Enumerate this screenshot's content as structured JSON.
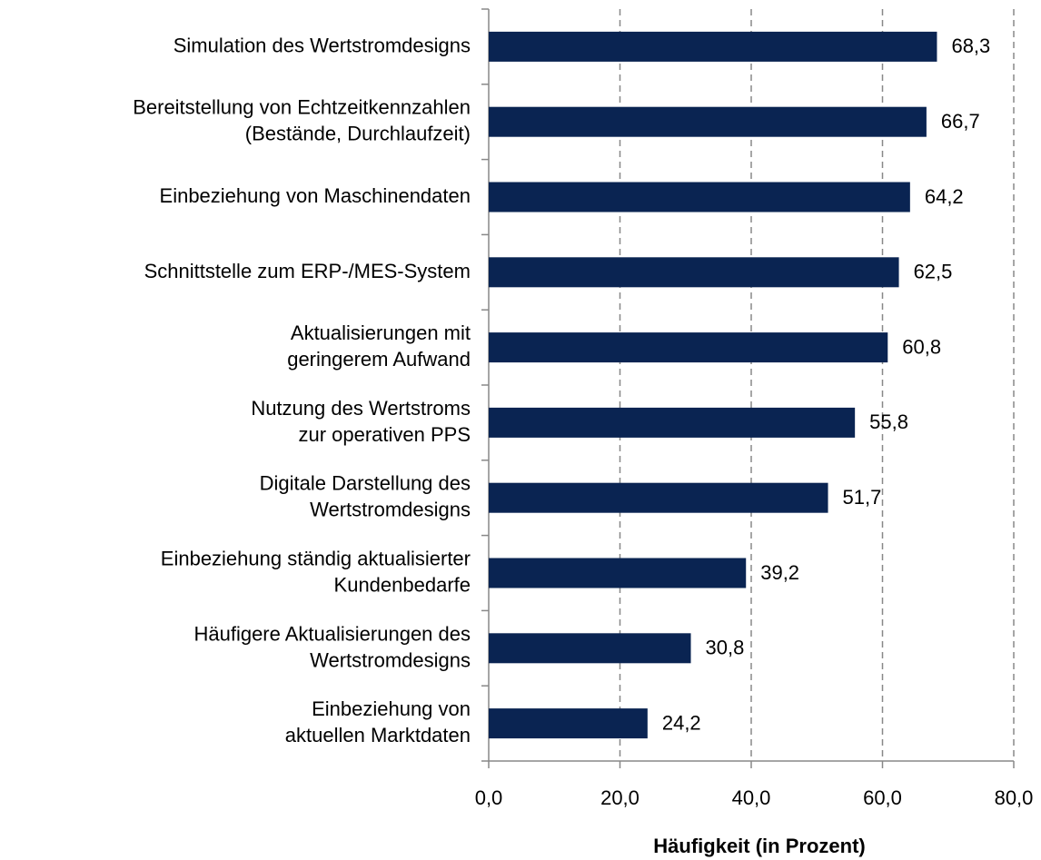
{
  "chart_data": {
    "type": "barh",
    "x_label": "Häufigkeit (in Prozent)",
    "categories": [
      "Simulation des Wertstromdesigns",
      "Bereitstellung von Echtzeitkennzahlen\n(Bestände, Durchlaufzeit)",
      "Einbeziehung von Maschinendaten",
      "Schnittstelle zum ERP-/MES-System",
      "Aktualisierungen mit\ngeringerem Aufwand",
      "Nutzung des Wertstroms\nzur operativen PPS",
      "Digitale Darstellung des\nWertstromdesigns",
      "Einbeziehung ständig aktualisierter\nKundenbedarfe",
      "Häufigere Aktualisierungen des\nWertstromdesigns",
      "Einbeziehung von\naktuellen Marktdaten"
    ],
    "values": [
      68.3,
      66.7,
      64.2,
      62.5,
      60.8,
      55.8,
      51.7,
      39.2,
      30.8,
      24.2
    ],
    "value_labels": [
      "68,3",
      "66,7",
      "64,2",
      "62,5",
      "60,8",
      "55,8",
      "51,7",
      "39,2",
      "30,8",
      "24,2"
    ],
    "color": "#0a2452",
    "xlim": [
      0,
      80
    ],
    "xticks": [
      {
        "value": 0,
        "label": "0,0"
      },
      {
        "value": 20,
        "label": "20,0"
      },
      {
        "value": 40,
        "label": "40,0"
      },
      {
        "value": 60,
        "label": "60,0"
      },
      {
        "value": 80,
        "label": "80,0"
      }
    ],
    "grid": true
  }
}
